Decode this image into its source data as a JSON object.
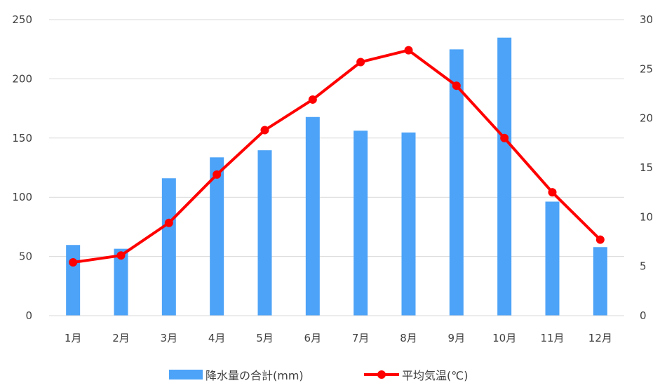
{
  "chart_data": {
    "type": "bar",
    "categories": [
      "1月",
      "2月",
      "3月",
      "4月",
      "5月",
      "6月",
      "7月",
      "8月",
      "9月",
      "10月",
      "11月",
      "12月"
    ],
    "series": [
      {
        "name": "降水量の合計(mm)",
        "type": "bar",
        "axis": "left",
        "color": "#4da3f7",
        "values": [
          59.7,
          56.5,
          116.0,
          133.7,
          139.7,
          167.8,
          156.2,
          154.7,
          224.9,
          234.8,
          96.3,
          57.9
        ]
      },
      {
        "name": "平均気温(℃)",
        "type": "line",
        "axis": "right",
        "color": "#ff0000",
        "values": [
          5.4,
          6.1,
          9.4,
          14.3,
          18.8,
          21.9,
          25.7,
          26.9,
          23.3,
          18.0,
          12.5,
          7.7
        ]
      }
    ],
    "y_left": {
      "ylim": [
        0,
        250
      ],
      "ticks": [
        "0",
        "50",
        "100",
        "150",
        "200",
        "250"
      ]
    },
    "y_right": {
      "ylim": [
        0,
        30
      ],
      "ticks": [
        "0",
        "5",
        "10",
        "15",
        "20",
        "25",
        "30"
      ]
    },
    "grid": true,
    "legend": "bottom"
  }
}
